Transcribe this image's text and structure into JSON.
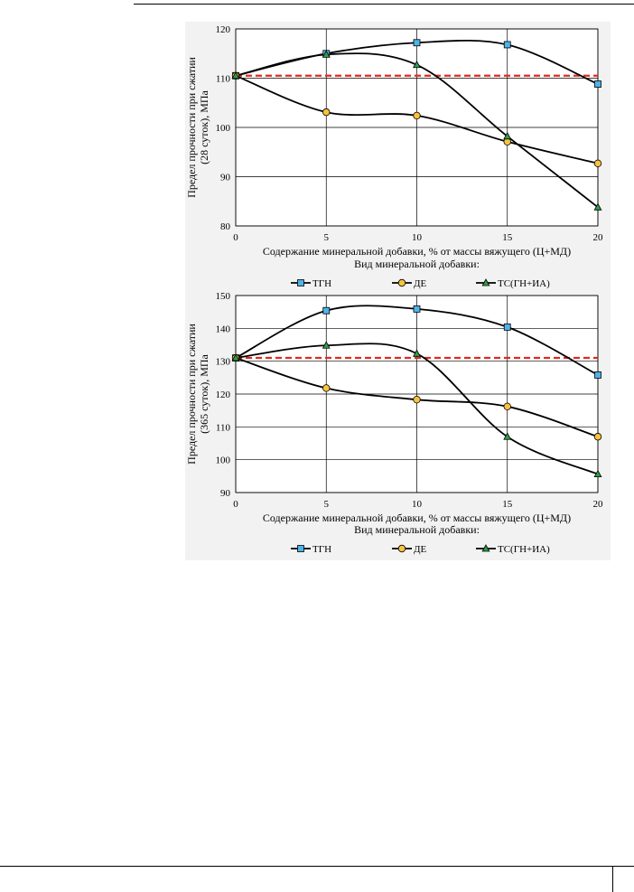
{
  "page": {
    "number": ""
  },
  "colors": {
    "tgn": "#4fb3e8",
    "de": "#f7c23e",
    "ts": "#2e9e4a",
    "line": "#000000",
    "reference": "#e02a1f",
    "grid": "#bfbfbf"
  },
  "chart_data": [
    {
      "type": "line",
      "xlabel": "Содержание минеральной добавки, % от массы вяжущего (Ц+МД)",
      "ylabel_line1": "Предел прочности при сжатии",
      "ylabel_line2": "(28 суток), МПа",
      "legend_title": "Вид минеральной добавки:",
      "legend_position": "bottom",
      "grid": true,
      "x": [
        0,
        5,
        10,
        15,
        20
      ],
      "x_ticks": [
        "0",
        "5",
        "10",
        "15",
        "20"
      ],
      "xlim": [
        0,
        20
      ],
      "ylim": [
        80,
        120
      ],
      "y_ticks": [
        80,
        90,
        100,
        110,
        120
      ],
      "reference_line": 110.5,
      "series": [
        {
          "name": "ТГН",
          "marker": "square",
          "values": [
            110.5,
            115,
            117.2,
            116.8,
            108.8
          ]
        },
        {
          "name": "ДЕ",
          "marker": "circle",
          "values": [
            110.5,
            103.1,
            102.4,
            97.1,
            92.7
          ]
        },
        {
          "name": "ТС(ГН+ИА)",
          "marker": "triangle",
          "values": [
            110.5,
            114.8,
            112.7,
            98.2,
            83.8
          ]
        }
      ]
    },
    {
      "type": "line",
      "xlabel": "Содержание минеральной добавки, % от массы вяжущего (Ц+МД)",
      "ylabel_line1": "Предел прочности при сжатии",
      "ylabel_line2": "(365 суток), МПа",
      "legend_title": "Вид минеральной добавки:",
      "legend_position": "bottom",
      "grid": true,
      "x": [
        0,
        5,
        10,
        15,
        20
      ],
      "x_ticks": [
        "0",
        "5",
        "10",
        "15",
        "20"
      ],
      "xlim": [
        0,
        20
      ],
      "ylim": [
        90,
        150
      ],
      "y_ticks": [
        90,
        100,
        110,
        120,
        130,
        140,
        150
      ],
      "reference_line": 131,
      "series": [
        {
          "name": "ТГН",
          "marker": "square",
          "values": [
            131,
            145.4,
            145.9,
            140.4,
            125.8
          ]
        },
        {
          "name": "ДЕ",
          "marker": "circle",
          "values": [
            131,
            121.8,
            118.3,
            116.2,
            107
          ]
        },
        {
          "name": "ТС(ГН+ИА)",
          "marker": "triangle",
          "values": [
            131,
            134.8,
            132.3,
            107,
            95.6
          ]
        }
      ]
    }
  ]
}
